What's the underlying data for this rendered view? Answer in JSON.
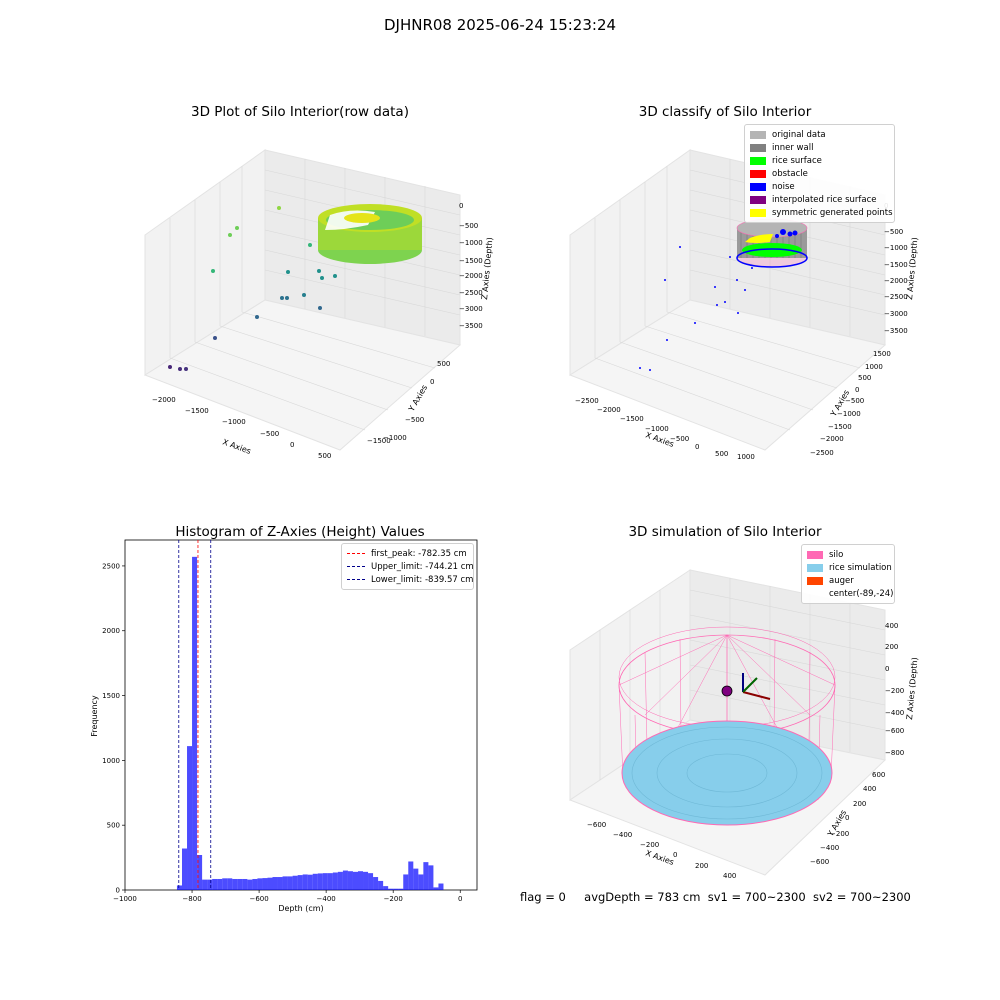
{
  "suptitle": "DJHNR08 2025-06-24 15:23:24",
  "colors": {
    "original": "#b4b4b4",
    "inner_wall": "#808080",
    "rice_surface": "#00ff00",
    "obstacle": "#ff0000",
    "noise": "#0000ff",
    "interpolated": "#800080",
    "symmetric": "#ffff00",
    "silo": "#ff69b4",
    "rice_sim": "#87ceeb",
    "auger": "#ff4500",
    "hist_bar": "#0000ff"
  },
  "chart_data": [
    {
      "type": "scatter",
      "title": "3D Plot of Silo Interior(row data)",
      "xlabel": "X Axies",
      "ylabel": "Y Axies",
      "zlabel": "Z Axies (Depth)",
      "x_ticks": [
        "−2000",
        "−1500",
        "−1000",
        "−500",
        "0",
        "500"
      ],
      "y_ticks": [
        "500",
        "0",
        "−500",
        "−1000",
        "−1500"
      ],
      "z_ticks": [
        "0",
        "−500",
        "−1000",
        "−1500",
        "−2000",
        "−2500",
        "−3000",
        "−3500"
      ]
    },
    {
      "type": "scatter",
      "title": "3D classify of Silo Interior",
      "xlabel": "X Axies",
      "ylabel": "Y Axies",
      "zlabel": "Z Axies (Depth)",
      "x_ticks": [
        "−2500",
        "−2000",
        "−1500",
        "−1000",
        "−500",
        "0",
        "500",
        "1000"
      ],
      "y_ticks": [
        "1500",
        "1000",
        "500",
        "0",
        "−500",
        "−1000",
        "−1500",
        "−2000",
        "−2500"
      ],
      "z_ticks": [
        "0",
        "−500",
        "−1000",
        "−1500",
        "−2000",
        "−2500",
        "−3000",
        "−3500"
      ],
      "legend": [
        "original data",
        "inner wall",
        "rice surface",
        "obstacle",
        "noise",
        "interpolated rice surface",
        "symmetric generated points"
      ]
    },
    {
      "type": "bar",
      "title": "Histogram of Z-Axies (Height) Values",
      "xlabel": "Depth (cm)",
      "ylabel": "Frequency",
      "xlim": [
        -1000,
        50
      ],
      "ylim": [
        0,
        2700
      ],
      "x_ticks": [
        -1000,
        -800,
        -600,
        -400,
        -200,
        0
      ],
      "y_ticks": [
        0,
        500,
        1000,
        1500,
        2000,
        2500
      ],
      "bin_width": 15,
      "bins": [
        [
          -845,
          35
        ],
        [
          -830,
          320
        ],
        [
          -815,
          1110
        ],
        [
          -800,
          2570
        ],
        [
          -785,
          270
        ],
        [
          -770,
          80
        ],
        [
          -755,
          80
        ],
        [
          -740,
          85
        ],
        [
          -725,
          85
        ],
        [
          -710,
          90
        ],
        [
          -695,
          90
        ],
        [
          -680,
          85
        ],
        [
          -665,
          85
        ],
        [
          -650,
          85
        ],
        [
          -635,
          80
        ],
        [
          -620,
          85
        ],
        [
          -605,
          90
        ],
        [
          -590,
          92
        ],
        [
          -575,
          95
        ],
        [
          -560,
          100
        ],
        [
          -545,
          100
        ],
        [
          -530,
          105
        ],
        [
          -515,
          105
        ],
        [
          -500,
          110
        ],
        [
          -485,
          115
        ],
        [
          -470,
          120
        ],
        [
          -455,
          118
        ],
        [
          -440,
          125
        ],
        [
          -425,
          128
        ],
        [
          -410,
          130
        ],
        [
          -395,
          130
        ],
        [
          -380,
          135
        ],
        [
          -365,
          140
        ],
        [
          -350,
          150
        ],
        [
          -335,
          145
        ],
        [
          -320,
          140
        ],
        [
          -305,
          145
        ],
        [
          -290,
          140
        ],
        [
          -275,
          130
        ],
        [
          -260,
          100
        ],
        [
          -245,
          70
        ],
        [
          -230,
          30
        ],
        [
          -215,
          10
        ],
        [
          -200,
          10
        ],
        [
          -185,
          10
        ],
        [
          -170,
          120
        ],
        [
          -155,
          220
        ],
        [
          -140,
          165
        ],
        [
          -125,
          120
        ],
        [
          -110,
          215
        ],
        [
          -95,
          190
        ],
        [
          -80,
          20
        ],
        [
          -65,
          50
        ]
      ],
      "lines": [
        {
          "name": "first_peak: -782.35 cm",
          "x": -782.35,
          "color": "#ff0000"
        },
        {
          "name": "Upper_limit: -744.21 cm",
          "x": -744.21,
          "color": "#00008b"
        },
        {
          "name": "Lower_limit: -839.57 cm",
          "x": -839.57,
          "color": "#00008b"
        }
      ]
    },
    {
      "type": "scatter",
      "title": "3D simulation of Silo Interior",
      "xlabel": "X Axies",
      "ylabel": "Y Axies",
      "zlabel": "Z Axies (Depth)",
      "x_ticks": [
        "−600",
        "−400",
        "−200",
        "0",
        "200",
        "400"
      ],
      "y_ticks": [
        "600",
        "400",
        "200",
        "0",
        "−200",
        "−400",
        "−600"
      ],
      "z_ticks": [
        "400",
        "200",
        "0",
        "−200",
        "−400",
        "−600",
        "−800"
      ],
      "legend": [
        "silo",
        "rice simulation",
        "auger",
        "center(-89,-24)"
      ]
    }
  ],
  "status": {
    "flag": "flag = 0",
    "avg": "avgDepth = 783 cm",
    "sv1": "sv1 = 700~2300",
    "sv2": "sv2 = 700~2300"
  }
}
